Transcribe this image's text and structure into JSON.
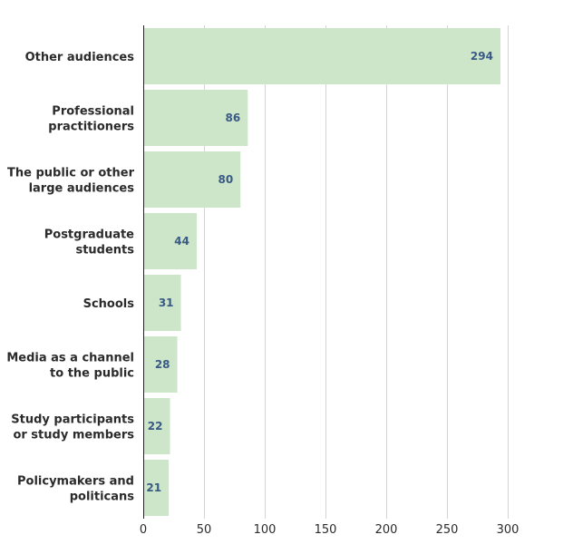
{
  "chart_data": {
    "type": "bar",
    "orientation": "horizontal",
    "title": "",
    "xlabel": "",
    "ylabel": "",
    "categories": [
      [
        "Other audiences"
      ],
      [
        "Professional",
        "practitioners"
      ],
      [
        "The public or other",
        "large audiences"
      ],
      [
        "Postgraduate",
        "students"
      ],
      [
        "Schools"
      ],
      [
        "Media as a channel",
        "to the public"
      ],
      [
        "Study participants",
        "or study members"
      ],
      [
        "Policymakers and",
        "politicans"
      ]
    ],
    "values": [
      294,
      86,
      80,
      44,
      31,
      28,
      22,
      21
    ],
    "value_labels": [
      "294",
      "86",
      "80",
      "44",
      "31",
      "28",
      "22",
      "21"
    ],
    "xlim": [
      0,
      300
    ],
    "xticks": [
      0,
      50,
      100,
      150,
      200,
      250,
      300
    ],
    "xtick_labels": [
      "0",
      "50",
      "100",
      "150",
      "200",
      "250",
      "300"
    ],
    "grid": true,
    "legend": "none",
    "colors": {
      "bar": "#cde5c8",
      "value_text": "#3a5a86",
      "category_text": "#2b2b2b",
      "grid": "#d4d4d4",
      "axis": "#222222"
    }
  }
}
